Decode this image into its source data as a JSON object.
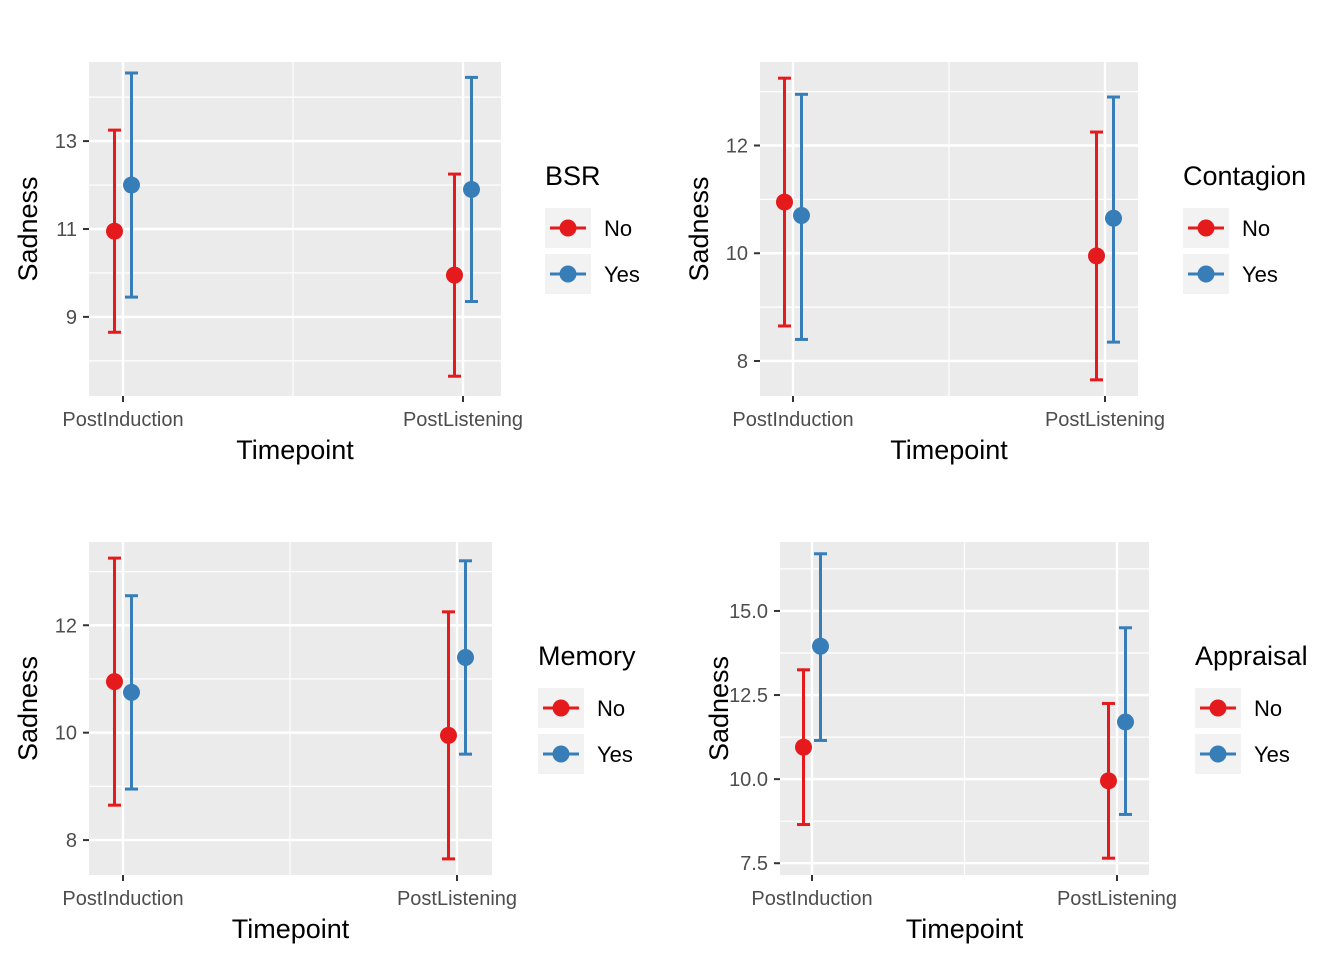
{
  "chart_data": [
    {
      "type": "errorbar",
      "xlabel": "Timepoint",
      "ylabel": "Sadness",
      "categories": [
        "PostInduction",
        "PostListening"
      ],
      "yticks": [
        "9",
        "11",
        "13"
      ],
      "ytick_values": [
        9,
        11,
        13
      ],
      "ylim": [
        7.2,
        14.8
      ],
      "legend": {
        "title": "BSR",
        "position": "right"
      },
      "series": [
        {
          "name": "No",
          "color": "#E41A1C",
          "mean": [
            10.95,
            9.95
          ],
          "lower": [
            8.65,
            7.65
          ],
          "upper": [
            13.25,
            12.25
          ]
        },
        {
          "name": "Yes",
          "color": "#377EB8",
          "mean": [
            12.0,
            11.9
          ],
          "lower": [
            9.45,
            9.35
          ],
          "upper": [
            14.55,
            14.45
          ]
        }
      ]
    },
    {
      "type": "errorbar",
      "xlabel": "Timepoint",
      "ylabel": "Sadness",
      "categories": [
        "PostInduction",
        "PostListening"
      ],
      "yticks": [
        "8",
        "10",
        "12"
      ],
      "ytick_values": [
        8,
        10,
        12
      ],
      "ylim": [
        7.35,
        13.55
      ],
      "legend": {
        "title": "Contagion",
        "position": "right"
      },
      "series": [
        {
          "name": "No",
          "color": "#E41A1C",
          "mean": [
            10.95,
            9.95
          ],
          "lower": [
            8.65,
            7.65
          ],
          "upper": [
            13.25,
            12.25
          ]
        },
        {
          "name": "Yes",
          "color": "#377EB8",
          "mean": [
            10.7,
            10.65
          ],
          "lower": [
            8.4,
            8.35
          ],
          "upper": [
            12.95,
            12.9
          ]
        }
      ]
    },
    {
      "type": "errorbar",
      "xlabel": "Timepoint",
      "ylabel": "Sadness",
      "categories": [
        "PostInduction",
        "PostListening"
      ],
      "yticks": [
        "8",
        "10",
        "12"
      ],
      "ytick_values": [
        8,
        10,
        12
      ],
      "ylim": [
        7.35,
        13.55
      ],
      "legend": {
        "title": "Memory",
        "position": "right"
      },
      "series": [
        {
          "name": "No",
          "color": "#E41A1C",
          "mean": [
            10.95,
            9.95
          ],
          "lower": [
            8.65,
            7.65
          ],
          "upper": [
            13.25,
            12.25
          ]
        },
        {
          "name": "Yes",
          "color": "#377EB8",
          "mean": [
            10.75,
            11.4
          ],
          "lower": [
            8.95,
            9.6
          ],
          "upper": [
            12.55,
            13.2
          ]
        }
      ]
    },
    {
      "type": "errorbar",
      "xlabel": "Timepoint",
      "ylabel": "Sadness",
      "categories": [
        "PostInduction",
        "PostListening"
      ],
      "yticks": [
        "7.5",
        "10.0",
        "12.5",
        "15.0"
      ],
      "ytick_values": [
        7.5,
        10.0,
        12.5,
        15.0
      ],
      "ylim": [
        7.15,
        17.05
      ],
      "legend": {
        "title": "Appraisal",
        "position": "right"
      },
      "series": [
        {
          "name": "No",
          "color": "#E41A1C",
          "mean": [
            10.95,
            9.95
          ],
          "lower": [
            8.65,
            7.65
          ],
          "upper": [
            13.25,
            12.25
          ]
        },
        {
          "name": "Yes",
          "color": "#377EB8",
          "mean": [
            13.95,
            11.7
          ],
          "lower": [
            11.15,
            8.95
          ],
          "upper": [
            16.7,
            14.5
          ]
        }
      ]
    }
  ]
}
